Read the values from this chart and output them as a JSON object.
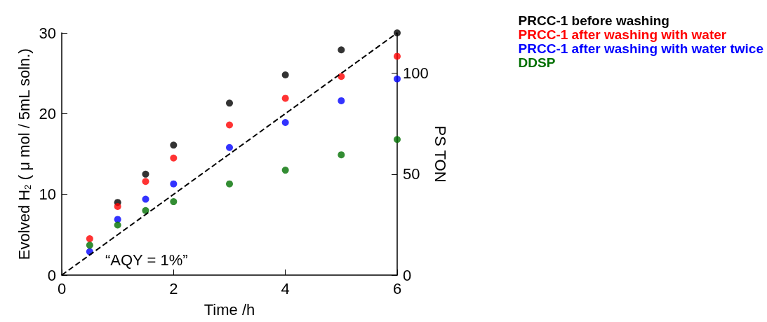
{
  "chart_data": {
    "type": "scatter",
    "xlabel": "Time /h",
    "ylabel": "Evolved H$_{2}$ ( μ mol / 5mL soln.)",
    "y2label": "PS TON",
    "x": [
      0.5,
      1,
      1.5,
      2,
      3,
      4,
      5,
      6
    ],
    "series": [
      {
        "name": "PRCC-1 before washing",
        "color": "#000000",
        "values": [
          null,
          9.0,
          12.5,
          16.1,
          21.3,
          24.8,
          27.9,
          30.0
        ]
      },
      {
        "name": "PRCC-1 after washing with water",
        "color": "#ff0000",
        "values": [
          4.5,
          8.5,
          11.6,
          14.5,
          18.6,
          21.9,
          24.6,
          27.1
        ]
      },
      {
        "name": "PRCC-1 after washing with water twice",
        "color": "#0000ff",
        "values": [
          2.9,
          6.9,
          9.4,
          11.3,
          15.8,
          18.9,
          21.6,
          24.3
        ]
      },
      {
        "name": "DDSP",
        "color": "#007000",
        "values": [
          3.7,
          6.2,
          8.0,
          9.1,
          11.3,
          13.0,
          14.9,
          16.8
        ]
      },
      {
        "type": "line",
        "color": "#000000",
        "line_style": "dashed",
        "marker": "none",
        "x": [
          0,
          6
        ],
        "values": [
          0,
          30
        ]
      }
    ],
    "annotations": [
      "“AQY = 1%”"
    ],
    "xlim": [
      0,
      6
    ],
    "xticks": [
      0,
      2,
      4,
      6
    ],
    "ylim": [
      0,
      30
    ],
    "yticks": [
      0,
      10,
      20,
      30
    ],
    "y2lim": [
      0,
      120
    ],
    "y2ticks": [
      0,
      50,
      100
    ],
    "marker": "circle",
    "grid": false,
    "legend": "top right"
  }
}
